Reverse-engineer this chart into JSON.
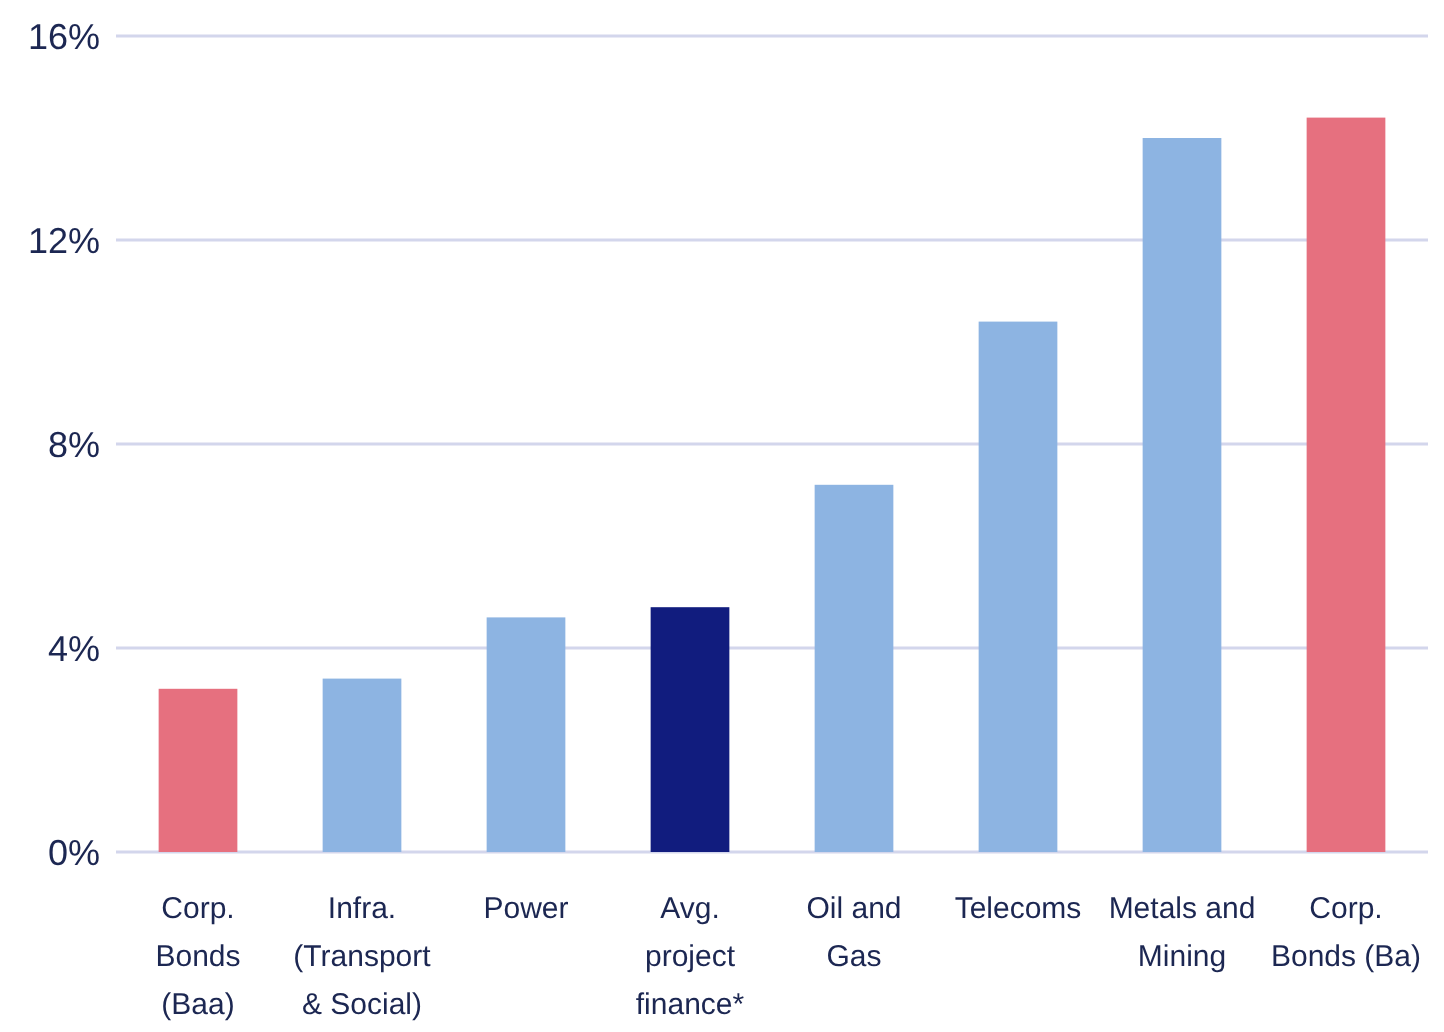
{
  "chart_data": {
    "type": "bar",
    "categories": [
      "Corp. Bonds (Baa)",
      "Infra. (Transport & Social)",
      "Power",
      "Avg. project finance*",
      "Oil and Gas",
      "Telecoms",
      "Metals and Mining",
      "Corp. Bonds (Ba)"
    ],
    "values": [
      3.2,
      3.4,
      4.6,
      4.8,
      7.2,
      10.4,
      14.0,
      14.4
    ],
    "colors": [
      "#e6707f",
      "#8db4e2",
      "#8db4e2",
      "#111c7e",
      "#8db4e2",
      "#8db4e2",
      "#8db4e2",
      "#e6707f"
    ],
    "ylim": [
      0,
      16
    ],
    "yticks": [
      {
        "value": 0,
        "label": "0%"
      },
      {
        "value": 4,
        "label": "4%"
      },
      {
        "value": 8,
        "label": "8%"
      },
      {
        "value": 12,
        "label": "12%"
      },
      {
        "value": 16,
        "label": "16%"
      }
    ],
    "grid": "y"
  }
}
